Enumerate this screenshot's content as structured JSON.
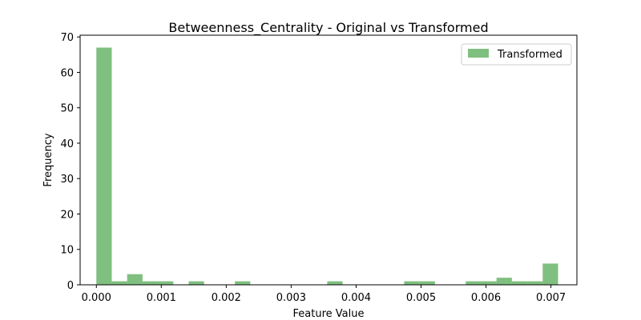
{
  "chart_data": {
    "type": "bar",
    "title": "Betweenness_Centrality - Original vs Transformed",
    "xlabel": "Feature Value",
    "ylabel": "Frequency",
    "xlim": [
      -0.00025,
      0.0074
    ],
    "ylim": [
      0,
      70.5
    ],
    "xticks": [
      0.0,
      0.001,
      0.002,
      0.003,
      0.004,
      0.005,
      0.006,
      0.007
    ],
    "xtick_labels": [
      "0.000",
      "0.001",
      "0.002",
      "0.003",
      "0.004",
      "0.005",
      "0.006",
      "0.007"
    ],
    "yticks": [
      0,
      10,
      20,
      30,
      40,
      50,
      60,
      70
    ],
    "ytick_labels": [
      "0",
      "10",
      "20",
      "30",
      "40",
      "50",
      "60",
      "70"
    ],
    "legend_position": "top-right",
    "grid": false,
    "series": [
      {
        "name": "Transformed",
        "color": "#7fbf7f",
        "bin_start": 0.0,
        "bin_width": 0.000237,
        "counts": [
          67,
          1,
          3,
          1,
          1,
          0,
          1,
          0,
          0,
          1,
          0,
          0,
          0,
          0,
          0,
          1,
          0,
          0,
          0,
          0,
          1,
          1,
          0,
          0,
          1,
          1,
          2,
          1,
          1,
          6
        ]
      }
    ]
  }
}
